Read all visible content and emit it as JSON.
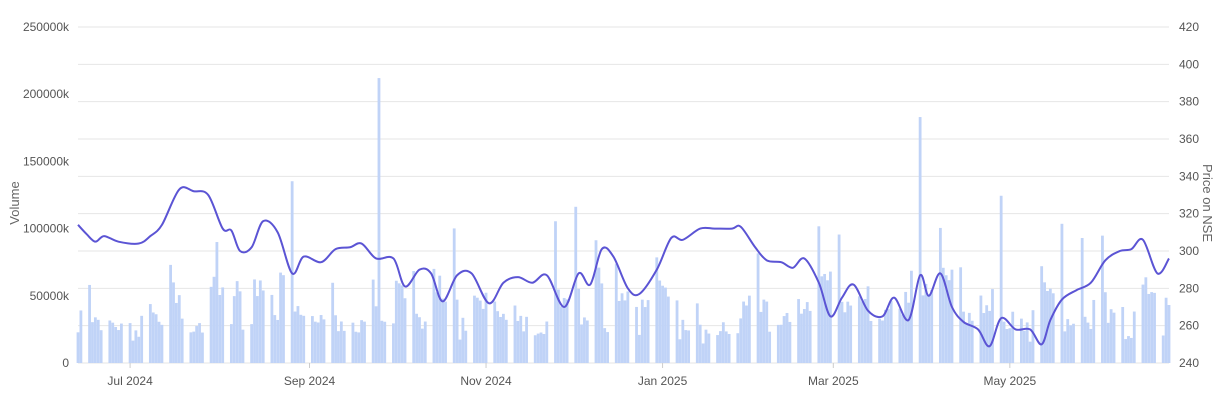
{
  "chart_data": {
    "type": "bar+line",
    "xlabel": "",
    "ylabel_left": "Volume",
    "ylabel_right": "Price on NSE",
    "left_axis": {
      "min": 0,
      "max": 250000,
      "ticks": [
        0,
        50000,
        100000,
        150000,
        200000,
        250000
      ],
      "tick_labels": [
        "0",
        "50000k",
        "100000k",
        "150000k",
        "200000k",
        "250000k"
      ]
    },
    "right_axis": {
      "min": 240,
      "max": 420,
      "ticks": [
        240,
        260,
        280,
        300,
        320,
        340,
        360,
        380,
        400,
        420
      ],
      "tick_labels": [
        "240",
        "260",
        "280",
        "300",
        "320",
        "340",
        "360",
        "380",
        "400",
        "420"
      ]
    },
    "x_range": [
      "2024-06-13",
      "2025-06-25"
    ],
    "x_ticks": [
      {
        "date": "2024-07-01",
        "label": "Jul 2024"
      },
      {
        "date": "2024-09-01",
        "label": "Sep 2024"
      },
      {
        "date": "2024-11-01",
        "label": "Nov 2024"
      },
      {
        "date": "2025-01-01",
        "label": "Jan 2025"
      },
      {
        "date": "2025-03-01",
        "label": "Mar 2025"
      },
      {
        "date": "2025-05-01",
        "label": "May 2025"
      }
    ],
    "grid": true,
    "colors": {
      "volume": "#c0d3f7",
      "price": "#5b54d4",
      "grid": "#e6e6e6"
    },
    "price": [
      [
        "2024-06-13",
        314
      ],
      [
        "2024-06-16",
        309
      ],
      [
        "2024-06-19",
        305
      ],
      [
        "2024-06-22",
        308
      ],
      [
        "2024-06-27",
        305
      ],
      [
        "2024-07-04",
        304
      ],
      [
        "2024-07-08",
        308
      ],
      [
        "2024-07-12",
        314
      ],
      [
        "2024-07-18",
        333
      ],
      [
        "2024-07-23",
        332
      ],
      [
        "2024-07-28",
        330
      ],
      [
        "2024-08-02",
        312
      ],
      [
        "2024-08-05",
        311
      ],
      [
        "2024-08-08",
        300
      ],
      [
        "2024-08-12",
        302
      ],
      [
        "2024-08-16",
        316
      ],
      [
        "2024-08-21",
        310
      ],
      [
        "2024-08-26",
        288
      ],
      [
        "2024-08-30",
        297
      ],
      [
        "2024-09-05",
        294
      ],
      [
        "2024-09-10",
        301
      ],
      [
        "2024-09-15",
        302
      ],
      [
        "2024-09-19",
        304
      ],
      [
        "2024-09-24",
        296
      ],
      [
        "2024-09-30",
        296
      ],
      [
        "2024-10-04",
        281
      ],
      [
        "2024-10-09",
        290
      ],
      [
        "2024-10-13",
        288
      ],
      [
        "2024-10-17",
        273
      ],
      [
        "2024-10-22",
        287
      ],
      [
        "2024-10-27",
        288
      ],
      [
        "2024-11-02",
        272
      ],
      [
        "2024-11-07",
        283
      ],
      [
        "2024-11-12",
        286
      ],
      [
        "2024-11-17",
        283
      ],
      [
        "2024-11-22",
        287
      ],
      [
        "2024-11-28",
        270
      ],
      [
        "2024-12-03",
        288
      ],
      [
        "2024-12-07",
        282
      ],
      [
        "2024-12-11",
        301
      ],
      [
        "2024-12-15",
        297
      ],
      [
        "2024-12-20",
        280
      ],
      [
        "2024-12-24",
        277
      ],
      [
        "2024-12-30",
        290
      ],
      [
        "2025-01-04",
        307
      ],
      [
        "2025-01-08",
        306
      ],
      [
        "2025-01-14",
        312
      ],
      [
        "2025-01-19",
        312
      ],
      [
        "2025-01-25",
        312
      ],
      [
        "2025-01-28",
        313
      ],
      [
        "2025-02-02",
        302
      ],
      [
        "2025-02-06",
        295
      ],
      [
        "2025-02-11",
        294
      ],
      [
        "2025-02-15",
        291
      ],
      [
        "2025-02-19",
        296
      ],
      [
        "2025-02-24",
        283
      ],
      [
        "2025-02-28",
        265
      ],
      [
        "2025-03-04",
        275
      ],
      [
        "2025-03-08",
        282
      ],
      [
        "2025-03-13",
        268
      ],
      [
        "2025-03-18",
        265
      ],
      [
        "2025-03-22",
        275
      ],
      [
        "2025-03-27",
        263
      ],
      [
        "2025-03-31",
        287
      ],
      [
        "2025-04-03",
        276
      ],
      [
        "2025-04-07",
        288
      ],
      [
        "2025-04-11",
        270
      ],
      [
        "2025-04-15",
        262
      ],
      [
        "2025-04-20",
        258
      ],
      [
        "2025-04-24",
        249
      ],
      [
        "2025-04-28",
        264
      ],
      [
        "2025-05-03",
        258
      ],
      [
        "2025-05-08",
        258
      ],
      [
        "2025-05-12",
        250
      ],
      [
        "2025-05-15",
        263
      ],
      [
        "2025-05-19",
        274
      ],
      [
        "2025-05-24",
        279
      ],
      [
        "2025-05-29",
        283
      ],
      [
        "2025-06-03",
        295
      ],
      [
        "2025-06-08",
        300
      ],
      [
        "2025-06-12",
        301
      ],
      [
        "2025-06-16",
        306
      ],
      [
        "2025-06-21",
        288
      ],
      [
        "2025-06-25",
        296
      ]
    ],
    "volume_spikes": [
      {
        "date": "2024-09-25",
        "value": 212000
      },
      {
        "date": "2024-07-31",
        "value": 90000
      },
      {
        "date": "2025-05-26",
        "value": 93000
      },
      {
        "date": "2024-07-15",
        "value": 73000
      }
    ]
  }
}
